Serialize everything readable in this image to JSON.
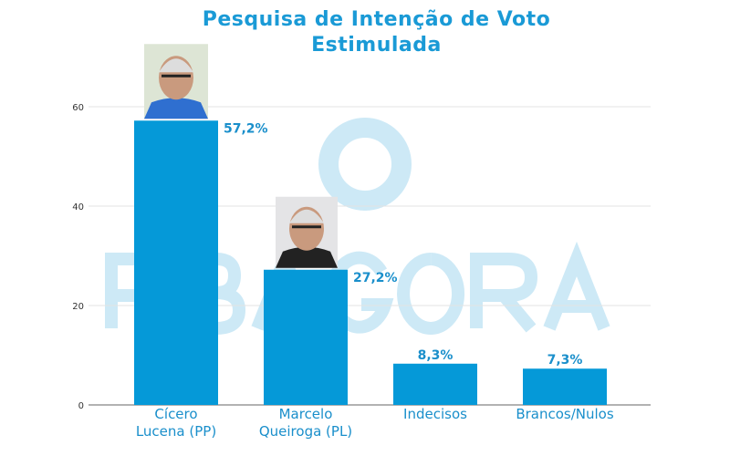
{
  "colors": {
    "bar": "#0599d8",
    "title": "#1a9ad6",
    "label": "#1a8fcb",
    "grid": "#e3e3e3",
    "watermark": "#cde9f6"
  },
  "watermark": "PBAGORA",
  "chart_data": {
    "type": "bar",
    "title_lines": [
      "Pesquisa de Intenção de Voto",
      "Estimulada"
    ],
    "categories": [
      [
        "Cícero",
        "Lucena (PP)"
      ],
      [
        "Marcelo",
        "Queiroga (PL)"
      ],
      [
        "Indecisos"
      ],
      [
        "Brancos/Nulos"
      ]
    ],
    "values": [
      57.2,
      27.2,
      8.3,
      7.3
    ],
    "data_labels": [
      "57,2%",
      "27,2%",
      "8,3%",
      "7,3%"
    ],
    "ylim": [
      0,
      60
    ],
    "yticks": [
      0,
      20,
      40,
      60
    ],
    "grid": true,
    "legend": "none",
    "photos": [
      "candidate-photo-cicero-lucena",
      "candidate-photo-marcelo-queiroga",
      null,
      null
    ]
  }
}
